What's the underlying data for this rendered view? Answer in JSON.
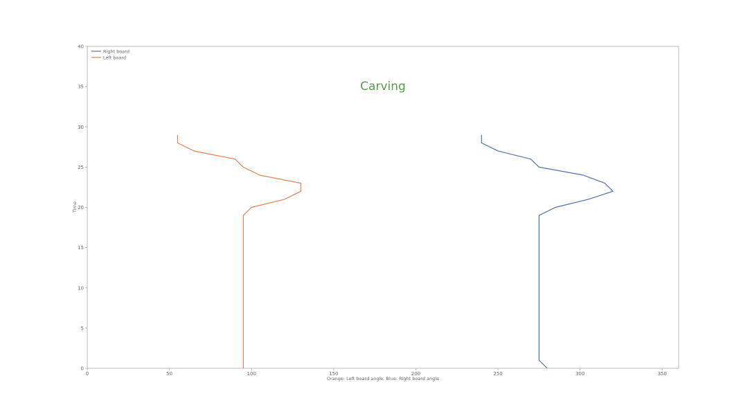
{
  "chart_data": {
    "type": "line",
    "title": "Carving",
    "xlabel": "Orange: Left board angle. Blue: Right board angle",
    "ylabel": "Time",
    "xlim": [
      0,
      360
    ],
    "ylim": [
      0,
      40
    ],
    "xticks": [
      0,
      50,
      100,
      150,
      200,
      250,
      300,
      350
    ],
    "yticks": [
      0,
      5,
      10,
      15,
      20,
      25,
      30,
      35,
      40
    ],
    "grid": false,
    "legend_position": "top-left",
    "series": [
      {
        "name": "Right board",
        "color": "#4c72b0",
        "points": [
          [
            280,
            0
          ],
          [
            275,
            1
          ],
          [
            275,
            19
          ],
          [
            285,
            20
          ],
          [
            305,
            21
          ],
          [
            320,
            22
          ],
          [
            315,
            23
          ],
          [
            302,
            24
          ],
          [
            275,
            25
          ],
          [
            270,
            26
          ],
          [
            250,
            27
          ],
          [
            240,
            28
          ],
          [
            240,
            29
          ]
        ]
      },
      {
        "name": "Left board",
        "color": "#dd8452",
        "points": [
          [
            95,
            0
          ],
          [
            95,
            1
          ],
          [
            95,
            19
          ],
          [
            100,
            20
          ],
          [
            120,
            21
          ],
          [
            130,
            22
          ],
          [
            130,
            23
          ],
          [
            105,
            24
          ],
          [
            95,
            25
          ],
          [
            90,
            26
          ],
          [
            65,
            27
          ],
          [
            55,
            28
          ],
          [
            55,
            29
          ]
        ]
      }
    ]
  },
  "colors": {
    "title": "#5a9a4a",
    "axis": "#aaaaaa"
  }
}
